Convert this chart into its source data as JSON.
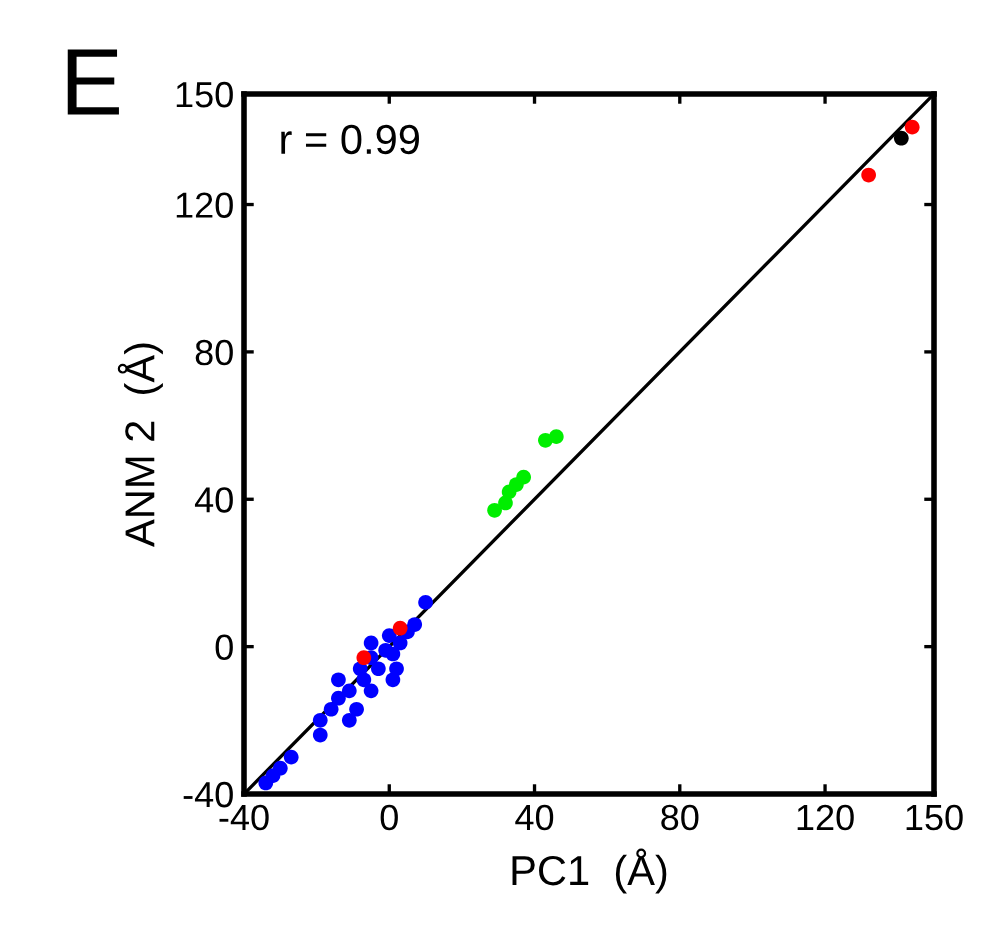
{
  "chart_data": {
    "type": "scatter",
    "xlabel": "PC1  (Å)",
    "ylabel": "ANM 2  (Å)",
    "annotations": [
      "E",
      "r = 0.99"
    ],
    "xlim": [
      -40,
      150
    ],
    "ylim": [
      -40,
      150
    ],
    "xticks": [
      -40,
      0,
      40,
      80,
      120,
      150
    ],
    "yticks": [
      -40,
      0,
      40,
      80,
      120,
      150
    ],
    "grid": false,
    "legend": false,
    "series": [
      {
        "type": "line",
        "color": "#000000",
        "x": [
          -40,
          150
        ],
        "values": [
          -40,
          150
        ]
      },
      {
        "marker": "circle",
        "color": "#0000ff",
        "x": [
          10,
          7,
          3,
          0,
          -5,
          -8,
          -3,
          -11,
          -5,
          -14,
          -16,
          -19,
          -9,
          1,
          2,
          -19,
          -28,
          -32,
          -34,
          -30,
          -27,
          -14,
          -5,
          -1,
          1,
          -7,
          -11,
          5
        ],
        "values": [
          12,
          6,
          1,
          3,
          -3,
          -6,
          -6,
          -12,
          -12,
          -14,
          -17,
          -20,
          -17,
          -9,
          -6,
          -24,
          null,
          -35,
          -37,
          -33,
          -30,
          -9,
          1,
          -1,
          -2,
          -9,
          -20,
          4
        ]
      },
      {
        "marker": "circle",
        "color": "#00ee00",
        "x": [
          43,
          46,
          37,
          35,
          33,
          32,
          29
        ],
        "values": [
          56,
          57,
          46,
          44,
          42,
          39,
          37
        ]
      },
      {
        "marker": "circle",
        "color": "#ff0000",
        "x": [
          3,
          -7,
          132,
          143,
          144
        ],
        "values": [
          5,
          -3,
          128,
          null,
          141
        ]
      },
      {
        "marker": "circle",
        "color": "#000000",
        "x": [
          141
        ],
        "values": [
          138
        ]
      }
    ]
  }
}
